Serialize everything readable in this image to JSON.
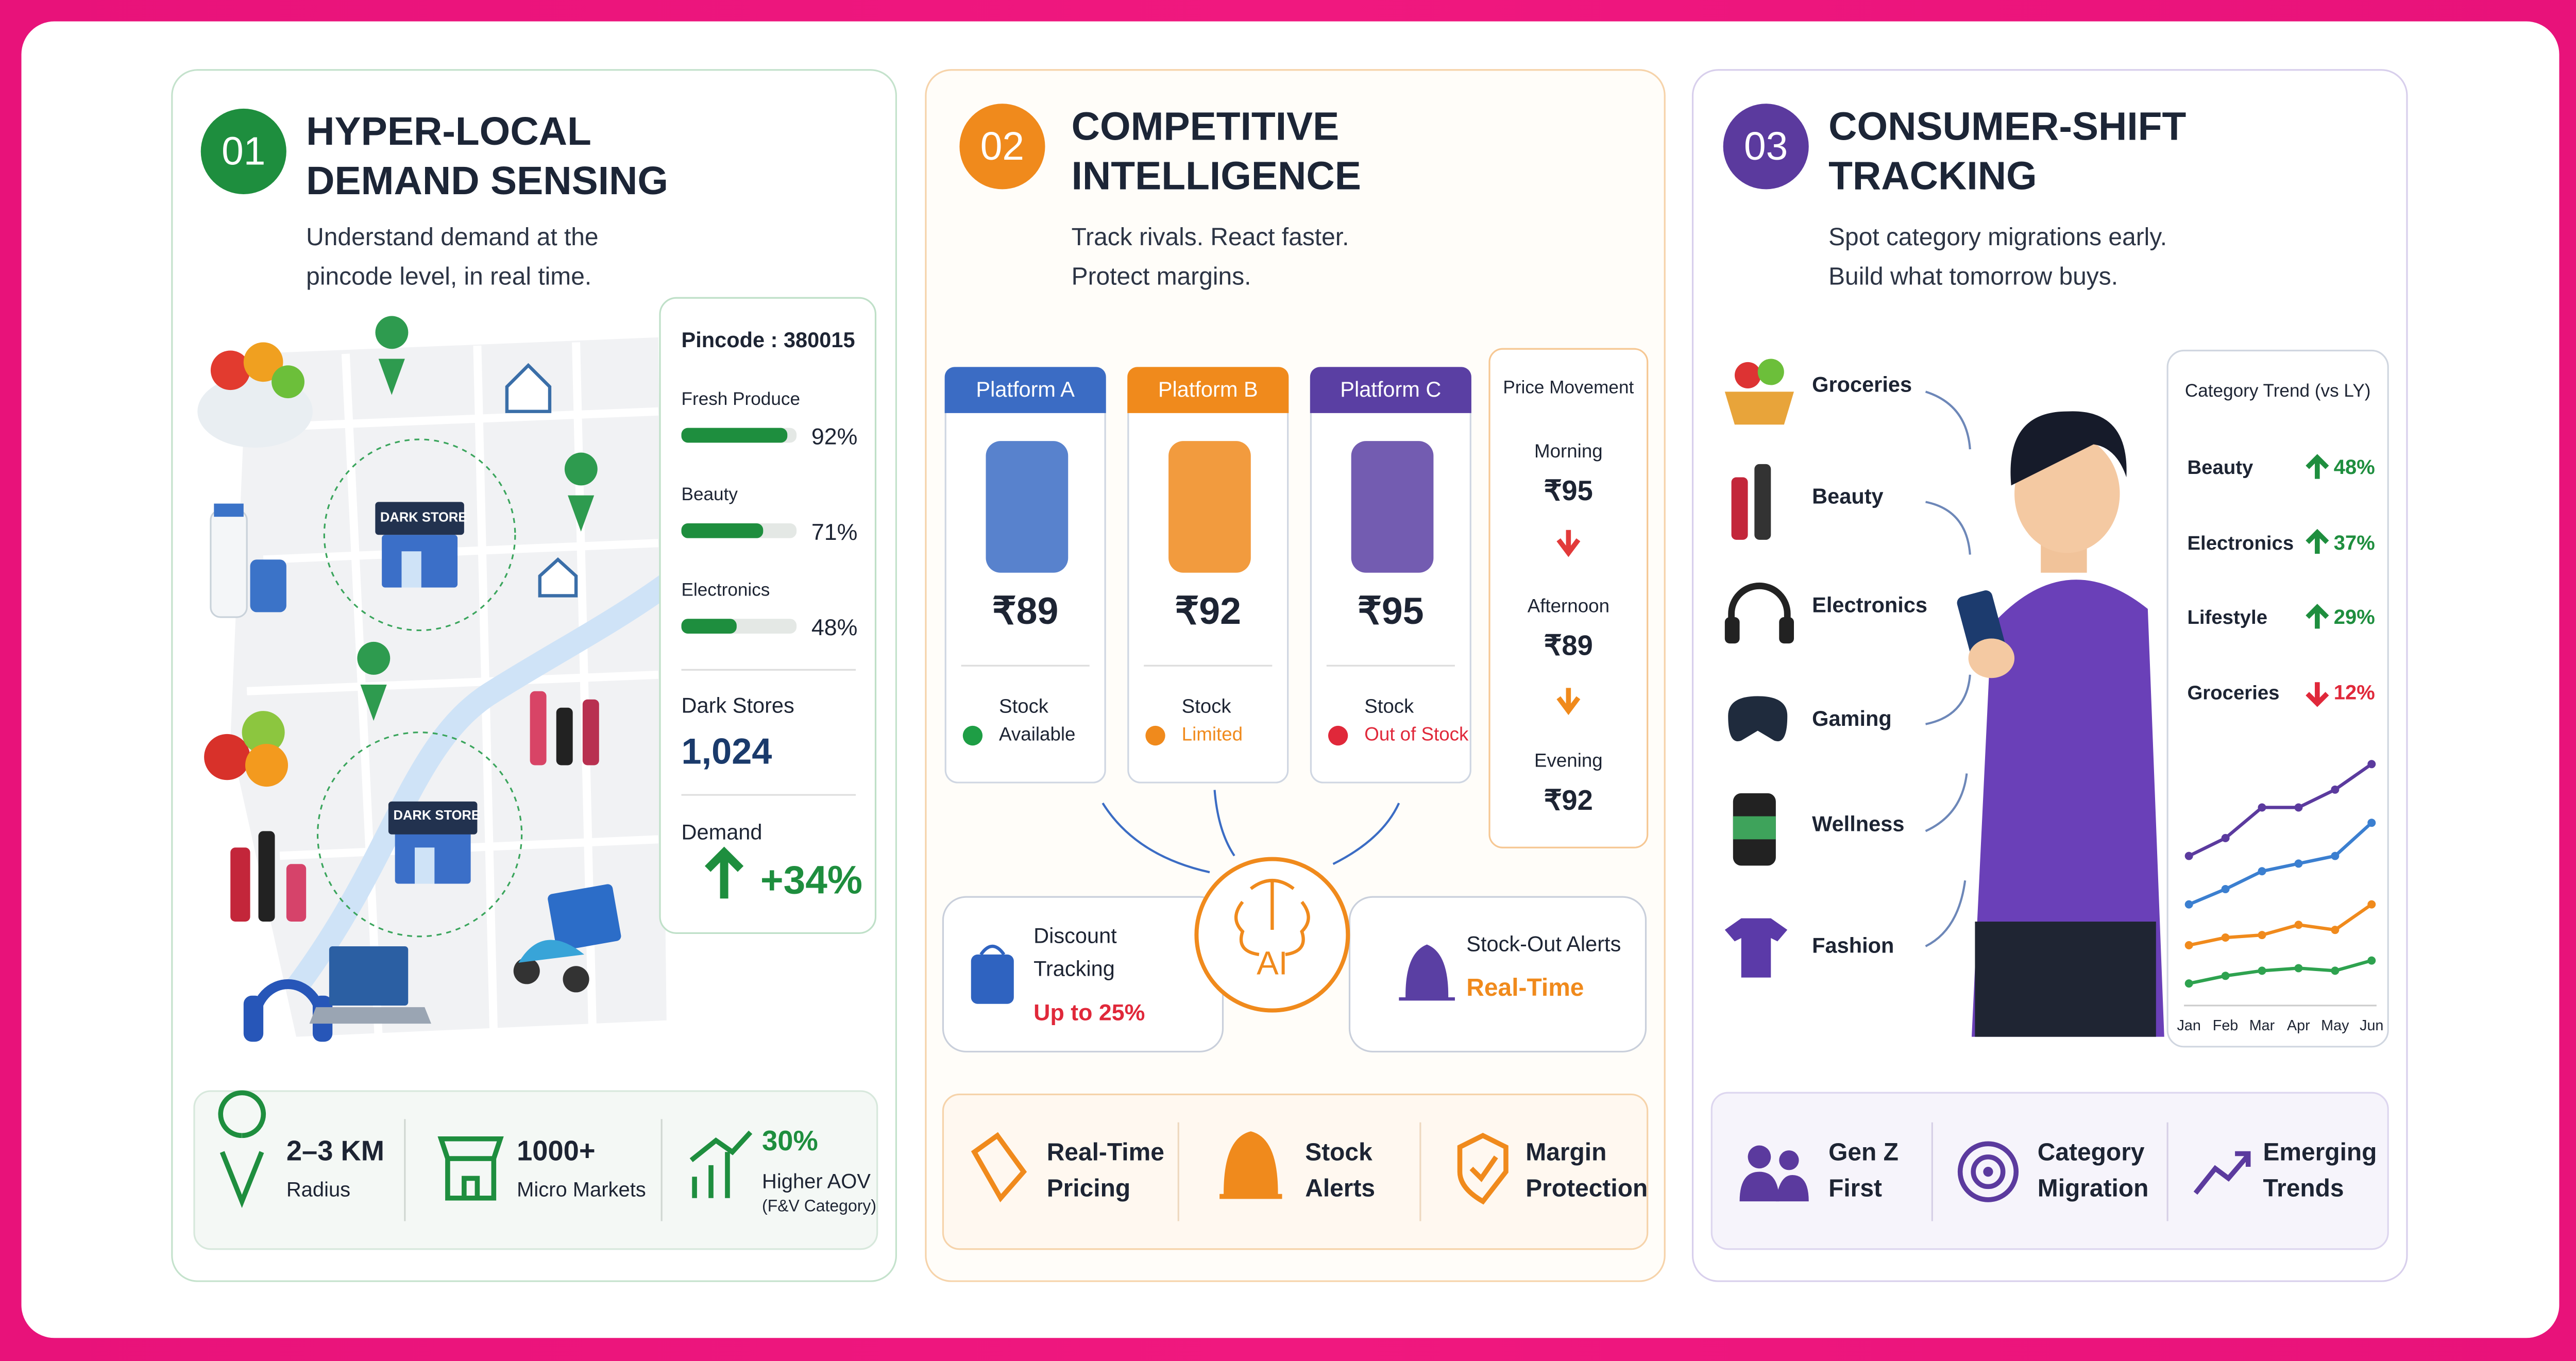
{
  "cards": [
    {
      "number": "01",
      "color": "#1e8e3e",
      "title": [
        "HYPER-LOCAL",
        "DEMAND SENSING"
      ],
      "subtitle": [
        "Understand demand at the",
        "pincode level, in real time."
      ]
    },
    {
      "number": "02",
      "color": "#f08a1c",
      "title": [
        "COMPETITIVE",
        "INTELLIGENCE"
      ],
      "subtitle": [
        "Track rivals. React faster.",
        "Protect margins."
      ]
    },
    {
      "number": "03",
      "color": "#5b3a9e",
      "title": [
        "CONSUMER-SHIFT",
        "TRACKING"
      ],
      "subtitle": [
        "Spot category migrations early.",
        "Build what tomorrow buys."
      ]
    }
  ],
  "map_labels": [
    "DARK STORE",
    "DARK STORE"
  ],
  "demand_panel": {
    "pincode": "Pincode : 380015",
    "metrics": [
      {
        "label": "Fresh Produce",
        "value": 92,
        "value_label": "92%"
      },
      {
        "label": "Beauty",
        "value": 71,
        "value_label": "71%"
      },
      {
        "label": "Electronics",
        "value": 48,
        "value_label": "48%"
      }
    ],
    "dark_stores_label": "Dark Stores",
    "dark_stores_value": "1,024",
    "demand_label": "Demand",
    "demand_value": "+34%"
  },
  "card1_stats": [
    {
      "value": "2–3 KM",
      "label": [
        "Radius"
      ]
    },
    {
      "value": "1000+",
      "label": [
        "Micro Markets"
      ]
    },
    {
      "value": "30%",
      "label": [
        "Higher AOV",
        "(F&V Category)"
      ]
    }
  ],
  "platforms": [
    {
      "name": "Platform A",
      "color": "#3b6cc4",
      "price": "₹89",
      "stock_label": "Stock",
      "status": "Available",
      "status_color": "#1e9e45"
    },
    {
      "name": "Platform B",
      "color": "#f08a1c",
      "price": "₹92",
      "stock_label": "Stock",
      "status": "Limited",
      "status_color": "#f08a1c"
    },
    {
      "name": "Platform C",
      "color": "#5a3fa3",
      "price": "₹95",
      "stock_label": "Stock",
      "status": "Out of Stock",
      "status_color": "#e0283a"
    }
  ],
  "price_movement": {
    "title": "Price Movement",
    "steps": [
      {
        "time": "Morning",
        "price": "₹95"
      },
      {
        "time": "Afternoon",
        "price": "₹89"
      },
      {
        "time": "Evening",
        "price": "₹92"
      }
    ]
  },
  "ai_label": "AI",
  "discount": {
    "title": [
      "Discount",
      "Tracking"
    ],
    "value": "Up to 25%"
  },
  "stockout": {
    "title": "Stock-Out Alerts",
    "value": "Real-Time"
  },
  "card2_features": [
    [
      "Real-Time",
      "Pricing"
    ],
    [
      "Stock",
      "Alerts"
    ],
    [
      "Margin",
      "Protection"
    ]
  ],
  "categories": [
    "Groceries",
    "Beauty",
    "Electronics",
    "Gaming",
    "Wellness",
    "Fashion"
  ],
  "trend_panel": {
    "title": "Category Trend (vs LY)",
    "rows": [
      {
        "label": "Beauty",
        "change": "48%",
        "direction": "up"
      },
      {
        "label": "Electronics",
        "change": "37%",
        "direction": "up"
      },
      {
        "label": "Lifestyle",
        "change": "29%",
        "direction": "up"
      },
      {
        "label": "Groceries",
        "change": "12%",
        "direction": "down"
      }
    ]
  },
  "trend_chart": {
    "type": "line",
    "categories": [
      "Jan",
      "Feb",
      "Mar",
      "Apr",
      "May",
      "Jun"
    ],
    "ylim": [
      0,
      100
    ],
    "series": [
      {
        "color": "#5b3a9e",
        "values": [
          58,
          65,
          77,
          77,
          84,
          94
        ]
      },
      {
        "color": "#3b7fd0",
        "values": [
          39,
          45,
          52,
          55,
          58,
          71
        ]
      },
      {
        "color": "#f08a1c",
        "values": [
          23,
          26,
          27,
          31,
          29,
          39
        ]
      },
      {
        "color": "#2ea24f",
        "values": [
          8,
          11,
          13,
          14,
          13,
          17
        ]
      }
    ]
  },
  "card3_features": [
    [
      "Gen Z",
      "First"
    ],
    [
      "Category",
      "Migration"
    ],
    [
      "Emerging",
      "Trends"
    ]
  ]
}
